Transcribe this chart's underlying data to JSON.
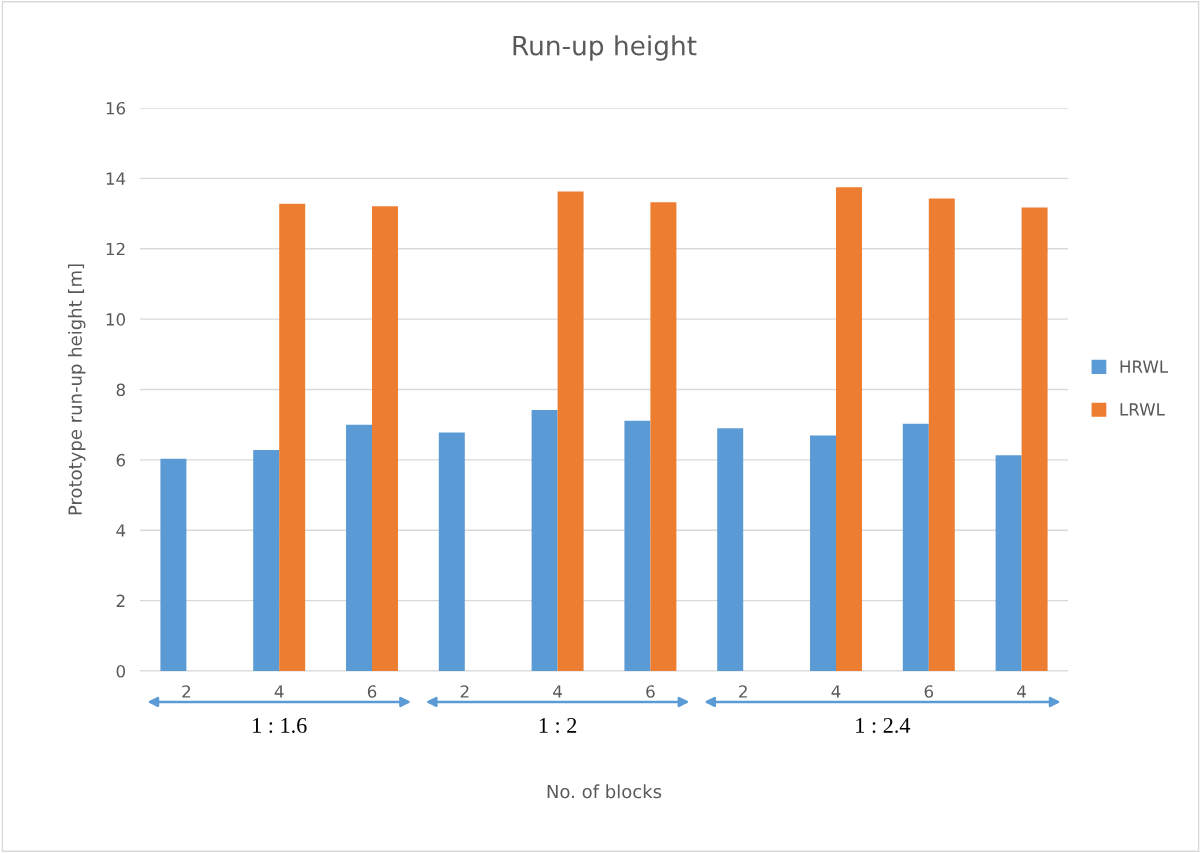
{
  "chart_data": {
    "type": "bar",
    "title": "Run-up height",
    "xlabel": "No. of blocks",
    "ylabel": "Prototype run-up height [m]",
    "categories": [
      "2",
      "4",
      "6",
      "2",
      "4",
      "6",
      "2",
      "4",
      "6",
      "4"
    ],
    "series": [
      {
        "name": "HRWL",
        "color": "#5b9bd5",
        "values": [
          6.03,
          6.28,
          7.0,
          6.78,
          7.42,
          7.11,
          6.9,
          6.69,
          7.03,
          6.13
        ]
      },
      {
        "name": "LRWL",
        "color": "#ed7d31",
        "values": [
          null,
          13.28,
          13.21,
          null,
          13.63,
          13.32,
          null,
          13.75,
          13.43,
          13.17
        ]
      }
    ],
    "annotations": [
      "1 : 1.6",
      "1 : 2",
      "1 : 2.4"
    ],
    "ylim": [
      0,
      16
    ],
    "yticks": [
      0,
      2,
      4,
      6,
      8,
      10,
      12,
      14,
      16
    ],
    "grid": "y",
    "legend": "right"
  }
}
